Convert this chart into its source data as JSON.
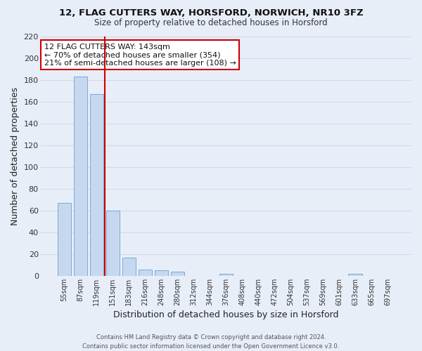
{
  "title1": "12, FLAG CUTTERS WAY, HORSFORD, NORWICH, NR10 3FZ",
  "title2": "Size of property relative to detached houses in Horsford",
  "xlabel": "Distribution of detached houses by size in Horsford",
  "ylabel": "Number of detached properties",
  "bar_labels": [
    "55sqm",
    "87sqm",
    "119sqm",
    "151sqm",
    "183sqm",
    "216sqm",
    "248sqm",
    "280sqm",
    "312sqm",
    "344sqm",
    "376sqm",
    "408sqm",
    "440sqm",
    "472sqm",
    "504sqm",
    "537sqm",
    "569sqm",
    "601sqm",
    "633sqm",
    "665sqm",
    "697sqm"
  ],
  "bar_values": [
    67,
    183,
    167,
    60,
    17,
    6,
    5,
    4,
    0,
    0,
    2,
    0,
    0,
    0,
    0,
    0,
    0,
    0,
    2,
    0,
    0
  ],
  "bar_color": "#c5d8f0",
  "bar_edge_color": "#7aaad0",
  "property_line_color": "#cc0000",
  "property_line_x": 2.5,
  "annotation_title": "12 FLAG CUTTERS WAY: 143sqm",
  "annotation_line1": "← 70% of detached houses are smaller (354)",
  "annotation_line2": "21% of semi-detached houses are larger (108) →",
  "annotation_box_facecolor": "#ffffff",
  "annotation_box_edgecolor": "#cc0000",
  "ylim_max": 220,
  "yticks": [
    0,
    20,
    40,
    60,
    80,
    100,
    120,
    140,
    160,
    180,
    200,
    220
  ],
  "grid_color": "#d0daea",
  "bg_color": "#e8eef8",
  "footer1": "Contains HM Land Registry data © Crown copyright and database right 2024.",
  "footer2": "Contains public sector information licensed under the Open Government Licence v3.0."
}
